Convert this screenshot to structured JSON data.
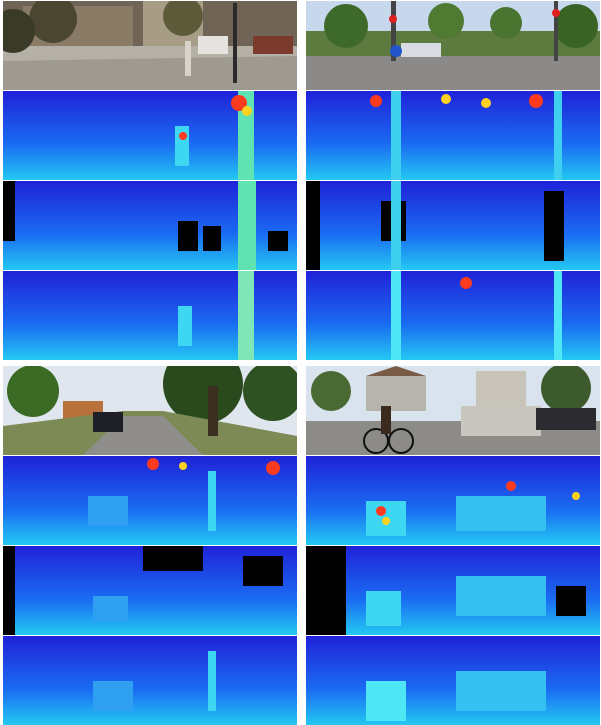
{
  "figure": {
    "groups": [
      {
        "scene": "street-crossing-cyclist",
        "panels": [
          "color-photo",
          "depth-map-prediction",
          "depth-map-sparse",
          "depth-map-refined"
        ]
      },
      {
        "scene": "intersection-traffic-light",
        "panels": [
          "color-photo",
          "depth-map-prediction",
          "depth-map-sparse",
          "depth-map-refined"
        ]
      },
      {
        "scene": "tree-lined-road-car",
        "panels": [
          "color-photo",
          "depth-map-prediction",
          "depth-map-sparse",
          "depth-map-refined"
        ]
      },
      {
        "scene": "cyclist-and-jeep-intersection",
        "panels": [
          "color-photo",
          "depth-map-prediction",
          "depth-map-sparse",
          "depth-map-refined"
        ]
      }
    ]
  },
  "colors": {
    "far": "#1f22d8",
    "mid": "#1a6cf2",
    "near": "#23c9f2",
    "closest": "#4fe6f5",
    "hot": "#ff3b1f",
    "warm": "#ffd21f",
    "missing": "#000000"
  }
}
